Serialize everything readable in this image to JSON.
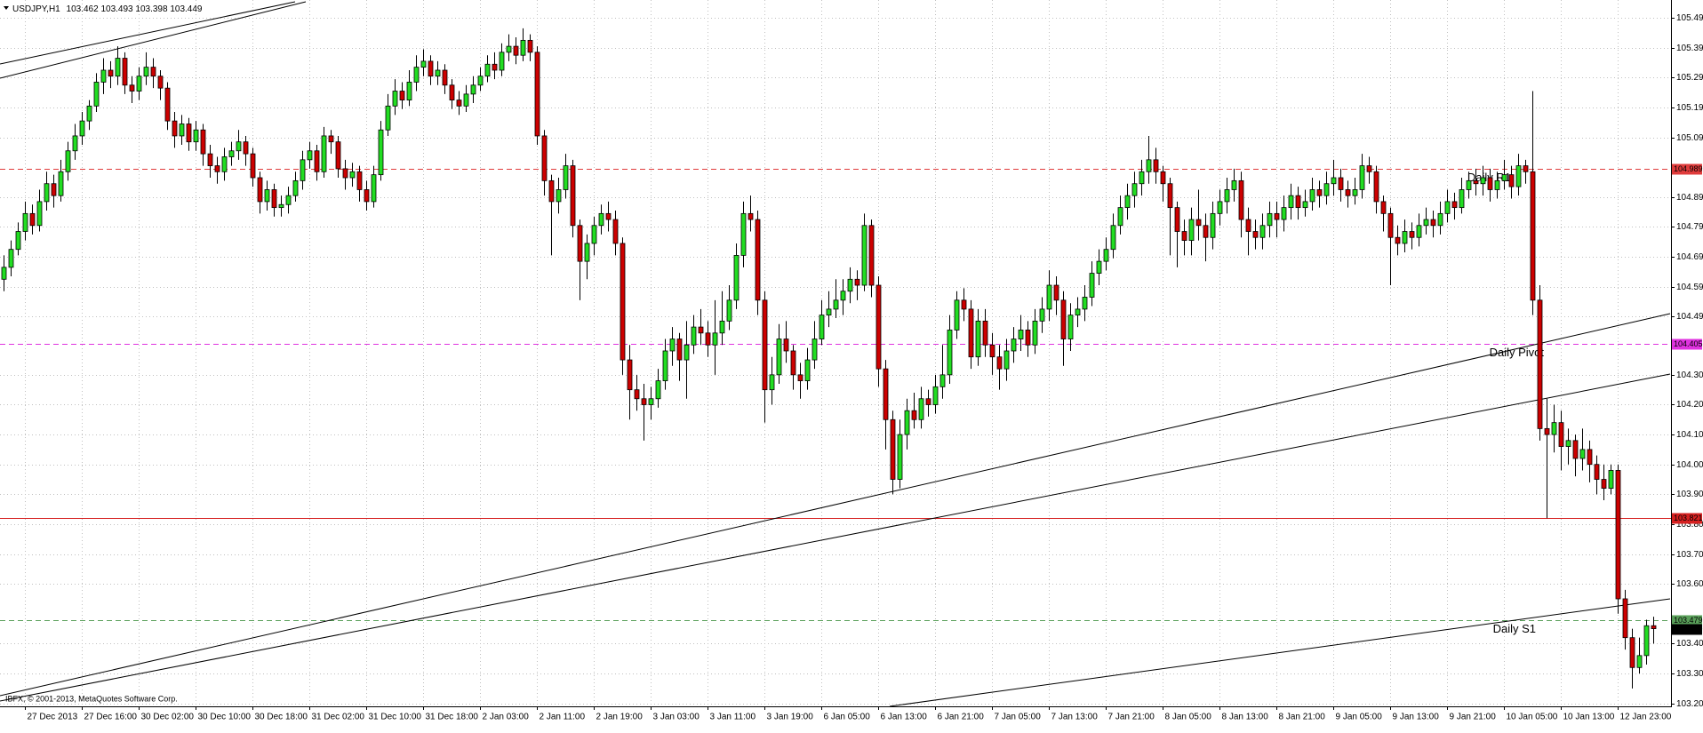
{
  "chart_data": {
    "type": "candlestick",
    "symbol": "USDJPY,H1",
    "ohlc": [
      103.462,
      103.493,
      103.398,
      103.449
    ],
    "copyright": "IBFX, © 2001-2013, MetaQuotes Software Corp.",
    "categories": [
      null,
      null,
      null,
      "27 Dec 2013",
      null,
      null,
      null,
      null,
      null,
      null,
      null,
      "27 Dec 16:00",
      null,
      null,
      null,
      null,
      null,
      null,
      null,
      "30 Dec 02:00",
      null,
      null,
      null,
      null,
      null,
      null,
      null,
      "30 Dec 10:00",
      null,
      null,
      null,
      null,
      null,
      null,
      null,
      "30 Dec 18:00",
      null,
      null,
      null,
      null,
      null,
      null,
      null,
      "31 Dec 02:00",
      null,
      null,
      null,
      null,
      null,
      null,
      null,
      "31 Dec 10:00",
      null,
      null,
      null,
      null,
      null,
      null,
      null,
      "31 Dec 18:00",
      null,
      null,
      null,
      null,
      null,
      null,
      null,
      "2 Jan 03:00",
      null,
      null,
      null,
      null,
      null,
      null,
      null,
      "2 Jan 11:00",
      null,
      null,
      null,
      null,
      null,
      null,
      null,
      "2 Jan 19:00",
      null,
      null,
      null,
      null,
      null,
      null,
      null,
      "3 Jan 03:00",
      null,
      null,
      null,
      null,
      null,
      null,
      null,
      "3 Jan 11:00",
      null,
      null,
      null,
      null,
      null,
      null,
      null,
      "3 Jan 19:00",
      null,
      null,
      null,
      null,
      null,
      null,
      null,
      "6 Jan 05:00",
      null,
      null,
      null,
      null,
      null,
      null,
      null,
      "6 Jan 13:00",
      null,
      null,
      null,
      null,
      null,
      null,
      null,
      "6 Jan 21:00",
      null,
      null,
      null,
      null,
      null,
      null,
      null,
      "7 Jan 05:00",
      null,
      null,
      null,
      null,
      null,
      null,
      null,
      "7 Jan 13:00",
      null,
      null,
      null,
      null,
      null,
      null,
      null,
      "7 Jan 21:00",
      null,
      null,
      null,
      null,
      null,
      null,
      null,
      "8 Jan 05:00",
      null,
      null,
      null,
      null,
      null,
      null,
      null,
      "8 Jan 13:00",
      null,
      null,
      null,
      null,
      null,
      null,
      null,
      "8 Jan 21:00",
      null,
      null,
      null,
      null,
      null,
      null,
      null,
      "9 Jan 05:00",
      null,
      null,
      null,
      null,
      null,
      null,
      null,
      "9 Jan 13:00",
      null,
      null,
      null,
      null,
      null,
      null,
      null,
      "9 Jan 21:00",
      null,
      null,
      null,
      null,
      null,
      null,
      null,
      "10 Jan 05:00",
      null,
      null,
      null,
      null,
      null,
      null,
      null,
      "10 Jan 13:00",
      null,
      null,
      null,
      null,
      null,
      null,
      null,
      "12 Jan 23:00",
      null,
      null,
      null,
      null,
      null
    ],
    "open": [
      104.62,
      104.66,
      104.72,
      104.78,
      104.84,
      104.8,
      104.88,
      104.94,
      104.9,
      104.98,
      105.05,
      105.1,
      105.15,
      105.2,
      105.28,
      105.32,
      105.3,
      105.36,
      105.27,
      105.25,
      105.3,
      105.33,
      105.3,
      105.26,
      105.15,
      105.1,
      105.14,
      105.08,
      105.12,
      105.04,
      105.0,
      104.98,
      105.03,
      105.05,
      105.08,
      105.04,
      104.96,
      104.88,
      104.92,
      104.86,
      104.87,
      104.9,
      104.95,
      105.02,
      105.05,
      104.98,
      105.1,
      105.08,
      104.99,
      104.96,
      104.98,
      104.92,
      104.88,
      104.97,
      105.12,
      105.2,
      105.25,
      105.22,
      105.28,
      105.33,
      105.35,
      105.3,
      105.32,
      105.27,
      105.22,
      105.2,
      105.24,
      105.27,
      105.3,
      105.34,
      105.32,
      105.38,
      105.4,
      105.37,
      105.42,
      105.38,
      105.1,
      104.95,
      104.88,
      104.92,
      105.0,
      104.8,
      104.68,
      104.74,
      104.8,
      104.84,
      104.82,
      104.74,
      104.35,
      104.25,
      104.22,
      104.2,
      104.22,
      104.28,
      104.38,
      104.42,
      104.35,
      104.4,
      104.46,
      104.44,
      104.4,
      104.44,
      104.48,
      104.55,
      104.7,
      104.84,
      104.82,
      104.55,
      104.25,
      104.3,
      104.42,
      104.38,
      104.3,
      104.28,
      104.35,
      104.42,
      104.5,
      104.52,
      104.55,
      104.58,
      104.62,
      104.6,
      104.8,
      104.6,
      104.32,
      104.15,
      103.95,
      104.1,
      104.18,
      104.15,
      104.22,
      104.2,
      104.26,
      104.3,
      104.45,
      104.55,
      104.52,
      104.36,
      104.48,
      104.4,
      104.36,
      104.32,
      104.38,
      104.42,
      104.45,
      104.4,
      104.48,
      104.52,
      104.6,
      104.55,
      104.42,
      104.5,
      104.52,
      104.56,
      104.64,
      104.68,
      104.72,
      104.8,
      104.86,
      104.9,
      104.94,
      104.98,
      105.02,
      104.98,
      104.94,
      104.86,
      104.78,
      104.75,
      104.82,
      104.8,
      104.76,
      104.84,
      104.88,
      104.92,
      104.95,
      104.82,
      104.78,
      104.76,
      104.8,
      104.84,
      104.82,
      104.86,
      104.9,
      104.86,
      104.88,
      104.92,
      104.9,
      104.94,
      104.96,
      104.92,
      104.9,
      104.92,
      105.0,
      104.98,
      104.88,
      104.84,
      104.76,
      104.74,
      104.78,
      104.76,
      104.8,
      104.82,
      104.8,
      104.84,
      104.88,
      104.86,
      104.92,
      104.95,
      104.94,
      104.96,
      104.92,
      104.95,
      104.97,
      104.93,
      105.0,
      104.98,
      104.55,
      104.12,
      104.1,
      104.14,
      104.06,
      104.08,
      104.02,
      104.05,
      104.0,
      103.95,
      103.92,
      103.98,
      103.55,
      103.42,
      103.32,
      103.36,
      103.46
    ],
    "high": [
      104.7,
      104.75,
      104.81,
      104.88,
      104.87,
      104.92,
      104.98,
      104.97,
      105.02,
      105.08,
      105.14,
      105.18,
      105.22,
      105.31,
      105.36,
      105.35,
      105.4,
      105.38,
      105.3,
      105.33,
      105.38,
      105.36,
      105.32,
      105.28,
      105.18,
      105.17,
      105.16,
      105.15,
      105.14,
      105.07,
      105.03,
      105.06,
      105.08,
      105.12,
      105.1,
      105.06,
      104.98,
      104.95,
      104.94,
      104.9,
      104.93,
      104.98,
      105.05,
      105.08,
      105.07,
      105.13,
      105.12,
      105.1,
      105.02,
      105.01,
      105.0,
      104.95,
      105.0,
      105.15,
      105.24,
      105.29,
      105.28,
      105.32,
      105.37,
      105.39,
      105.37,
      105.35,
      105.34,
      105.29,
      105.25,
      105.27,
      105.3,
      105.33,
      105.37,
      105.38,
      105.41,
      105.44,
      105.43,
      105.46,
      105.44,
      105.4,
      105.12,
      104.97,
      104.96,
      105.04,
      105.02,
      104.82,
      104.77,
      104.83,
      104.87,
      104.88,
      104.85,
      104.76,
      104.4,
      104.3,
      104.27,
      104.26,
      104.32,
      104.42,
      104.46,
      104.44,
      104.48,
      104.5,
      104.52,
      104.48,
      104.55,
      104.58,
      104.6,
      104.74,
      104.88,
      104.9,
      104.85,
      104.58,
      104.36,
      104.47,
      104.48,
      104.4,
      104.34,
      104.39,
      104.48,
      104.55,
      104.58,
      104.62,
      104.62,
      104.66,
      104.65,
      104.84,
      104.82,
      104.63,
      104.35,
      104.18,
      104.15,
      104.22,
      104.24,
      104.26,
      104.25,
      104.3,
      104.4,
      104.5,
      104.58,
      104.59,
      104.55,
      104.52,
      104.52,
      104.44,
      104.4,
      104.42,
      104.46,
      104.5,
      104.48,
      104.52,
      104.56,
      104.65,
      104.63,
      104.58,
      104.54,
      104.56,
      104.6,
      104.68,
      104.72,
      104.76,
      104.84,
      104.9,
      104.94,
      104.98,
      105.02,
      105.1,
      105.06,
      105.0,
      104.96,
      104.88,
      104.82,
      104.86,
      104.92,
      104.84,
      104.88,
      104.92,
      104.96,
      104.99,
      104.98,
      104.86,
      104.82,
      104.84,
      104.88,
      104.88,
      104.9,
      104.94,
      104.93,
      104.92,
      104.96,
      104.95,
      104.98,
      105.02,
      104.99,
      104.95,
      104.96,
      105.04,
      105.03,
      105.0,
      104.9,
      104.86,
      104.8,
      104.82,
      104.81,
      104.84,
      104.86,
      104.85,
      104.88,
      104.92,
      104.91,
      104.96,
      104.98,
      104.99,
      105.0,
      104.99,
      104.98,
      105.02,
      105.0,
      105.04,
      105.02,
      105.25,
      104.6,
      104.22,
      104.2,
      104.18,
      104.12,
      104.1,
      104.12,
      104.08,
      104.03,
      104.0,
      104.0,
      104.0,
      103.58,
      103.45,
      103.42,
      103.48,
      103.49
    ],
    "low": [
      104.58,
      104.63,
      104.7,
      104.75,
      104.77,
      104.78,
      104.85,
      104.86,
      104.88,
      104.95,
      105.02,
      105.07,
      105.12,
      105.18,
      105.24,
      105.26,
      105.27,
      105.24,
      105.21,
      105.22,
      105.27,
      105.26,
      105.22,
      105.12,
      105.06,
      105.07,
      105.05,
      105.05,
      105.0,
      104.96,
      104.94,
      104.95,
      105.0,
      105.02,
      105.0,
      104.93,
      104.84,
      104.85,
      104.83,
      104.83,
      104.84,
      104.88,
      104.92,
      104.99,
      104.95,
      104.96,
      105.04,
      104.96,
      104.92,
      104.93,
      104.88,
      104.85,
      104.86,
      104.95,
      105.1,
      105.17,
      105.19,
      105.2,
      105.25,
      105.3,
      105.27,
      105.27,
      105.24,
      105.19,
      105.17,
      105.18,
      105.21,
      105.25,
      105.28,
      105.29,
      105.3,
      105.35,
      105.34,
      105.35,
      105.35,
      105.07,
      104.9,
      104.7,
      104.84,
      104.89,
      104.76,
      104.55,
      104.62,
      104.7,
      104.77,
      104.78,
      104.7,
      104.3,
      104.15,
      104.18,
      104.08,
      104.15,
      104.19,
      104.25,
      104.33,
      104.28,
      104.22,
      104.37,
      104.4,
      104.36,
      104.3,
      104.4,
      104.45,
      104.52,
      104.66,
      104.78,
      104.5,
      104.14,
      104.2,
      104.27,
      104.34,
      104.25,
      104.22,
      104.25,
      104.32,
      104.4,
      104.46,
      104.49,
      104.5,
      104.54,
      104.55,
      104.58,
      104.56,
      104.26,
      104.05,
      103.9,
      103.92,
      104.05,
      104.12,
      104.12,
      104.16,
      104.17,
      104.22,
      104.27,
      104.42,
      104.48,
      104.32,
      104.33,
      104.36,
      104.3,
      104.25,
      104.28,
      104.34,
      104.38,
      104.36,
      104.37,
      104.44,
      104.48,
      104.5,
      104.33,
      104.38,
      104.46,
      104.48,
      104.53,
      104.6,
      104.65,
      104.69,
      104.77,
      104.82,
      104.86,
      104.9,
      104.94,
      104.94,
      104.88,
      104.7,
      104.66,
      104.7,
      104.7,
      104.75,
      104.68,
      104.72,
      104.8,
      104.84,
      104.88,
      104.76,
      104.7,
      104.72,
      104.72,
      104.76,
      104.76,
      104.78,
      104.82,
      104.82,
      104.83,
      104.85,
      104.86,
      104.87,
      104.9,
      104.88,
      104.86,
      104.87,
      104.89,
      104.94,
      104.84,
      104.78,
      104.6,
      104.7,
      104.71,
      104.72,
      104.73,
      104.77,
      104.76,
      104.77,
      104.81,
      104.82,
      104.84,
      104.89,
      104.9,
      104.9,
      104.88,
      104.89,
      104.92,
      104.89,
      104.9,
      104.94,
      104.5,
      104.08,
      103.82,
      104.04,
      103.98,
      104.0,
      103.96,
      103.98,
      103.94,
      103.9,
      103.88,
      103.9,
      103.5,
      103.38,
      103.25,
      103.3,
      103.33,
      103.4
    ],
    "close": [
      104.66,
      104.72,
      104.78,
      104.84,
      104.8,
      104.88,
      104.94,
      104.9,
      104.98,
      105.05,
      105.1,
      105.15,
      105.2,
      105.28,
      105.32,
      105.3,
      105.36,
      105.27,
      105.25,
      105.3,
      105.33,
      105.3,
      105.26,
      105.15,
      105.1,
      105.14,
      105.08,
      105.12,
      105.04,
      105.0,
      104.98,
      105.03,
      105.05,
      105.08,
      105.04,
      104.96,
      104.88,
      104.92,
      104.86,
      104.87,
      104.9,
      104.95,
      105.02,
      105.05,
      104.98,
      105.1,
      105.08,
      104.99,
      104.96,
      104.98,
      104.92,
      104.88,
      104.97,
      105.12,
      105.2,
      105.25,
      105.22,
      105.28,
      105.33,
      105.35,
      105.3,
      105.32,
      105.27,
      105.22,
      105.2,
      105.24,
      105.27,
      105.3,
      105.34,
      105.32,
      105.38,
      105.4,
      105.37,
      105.42,
      105.38,
      105.1,
      104.95,
      104.88,
      104.92,
      105.0,
      104.8,
      104.68,
      104.74,
      104.8,
      104.84,
      104.82,
      104.74,
      104.35,
      104.25,
      104.22,
      104.2,
      104.22,
      104.28,
      104.38,
      104.42,
      104.35,
      104.4,
      104.46,
      104.44,
      104.4,
      104.44,
      104.48,
      104.55,
      104.7,
      104.84,
      104.82,
      104.55,
      104.25,
      104.3,
      104.42,
      104.38,
      104.3,
      104.28,
      104.35,
      104.42,
      104.5,
      104.52,
      104.55,
      104.58,
      104.62,
      104.6,
      104.8,
      104.6,
      104.32,
      104.15,
      103.95,
      104.1,
      104.18,
      104.15,
      104.22,
      104.2,
      104.26,
      104.3,
      104.45,
      104.55,
      104.52,
      104.36,
      104.48,
      104.4,
      104.36,
      104.32,
      104.38,
      104.42,
      104.45,
      104.4,
      104.48,
      104.52,
      104.6,
      104.55,
      104.42,
      104.5,
      104.52,
      104.56,
      104.64,
      104.68,
      104.72,
      104.8,
      104.86,
      104.9,
      104.94,
      104.98,
      105.02,
      104.98,
      104.94,
      104.86,
      104.78,
      104.75,
      104.82,
      104.8,
      104.76,
      104.84,
      104.88,
      104.92,
      104.95,
      104.82,
      104.78,
      104.76,
      104.8,
      104.84,
      104.82,
      104.86,
      104.9,
      104.86,
      104.88,
      104.92,
      104.9,
      104.94,
      104.96,
      104.92,
      104.9,
      104.92,
      105.0,
      104.98,
      104.88,
      104.84,
      104.76,
      104.74,
      104.78,
      104.76,
      104.8,
      104.82,
      104.8,
      104.84,
      104.88,
      104.86,
      104.92,
      104.95,
      104.94,
      104.96,
      104.92,
      104.95,
      104.97,
      104.93,
      105.0,
      104.98,
      104.55,
      104.12,
      104.1,
      104.14,
      104.06,
      104.08,
      104.02,
      104.05,
      104.0,
      103.95,
      103.92,
      103.98,
      103.55,
      103.42,
      103.32,
      103.36,
      103.46,
      103.45
    ],
    "up_color": "#22dd22",
    "down_color": "#cc0000",
    "wick_color": "#000000",
    "ylim": [
      103.19,
      105.555
    ],
    "yticks": [
      105.495,
      105.395,
      105.295,
      105.195,
      105.095,
      104.895,
      104.795,
      104.695,
      104.595,
      104.495,
      {
        "value": 104.3,
        "label": "104.300"
      },
      {
        "value": 104.2,
        "label": "104.200"
      },
      {
        "value": 104.1,
        "label": "104.100"
      },
      {
        "value": 104.0,
        "label": "104.000"
      },
      {
        "value": 103.9,
        "label": "103.900"
      },
      {
        "value": 103.8,
        "label": "103.800"
      },
      {
        "value": 103.7,
        "label": "103.700"
      },
      {
        "value": 103.6,
        "label": "103.600"
      },
      {
        "value": 103.4,
        "label": "103.400"
      },
      {
        "value": 103.3,
        "label": "103.300"
      },
      {
        "value": 103.2,
        "label": "103.200"
      }
    ],
    "grid": true,
    "levels": [
      {
        "label": "Daily R1",
        "value": 104.989,
        "color": "#e03c3c",
        "style": "dashed"
      },
      {
        "label": "Daily Pivot",
        "value": 104.405,
        "color": "#e033e0",
        "style": "dashed"
      },
      {
        "value": 103.821,
        "color": "#d62020",
        "style": "solid"
      },
      {
        "label": "Daily S1",
        "value": 103.479,
        "color": "#5aa05a",
        "style": "dashed",
        "label_color": "#1c2a78"
      }
    ],
    "bid": 103.449
  }
}
